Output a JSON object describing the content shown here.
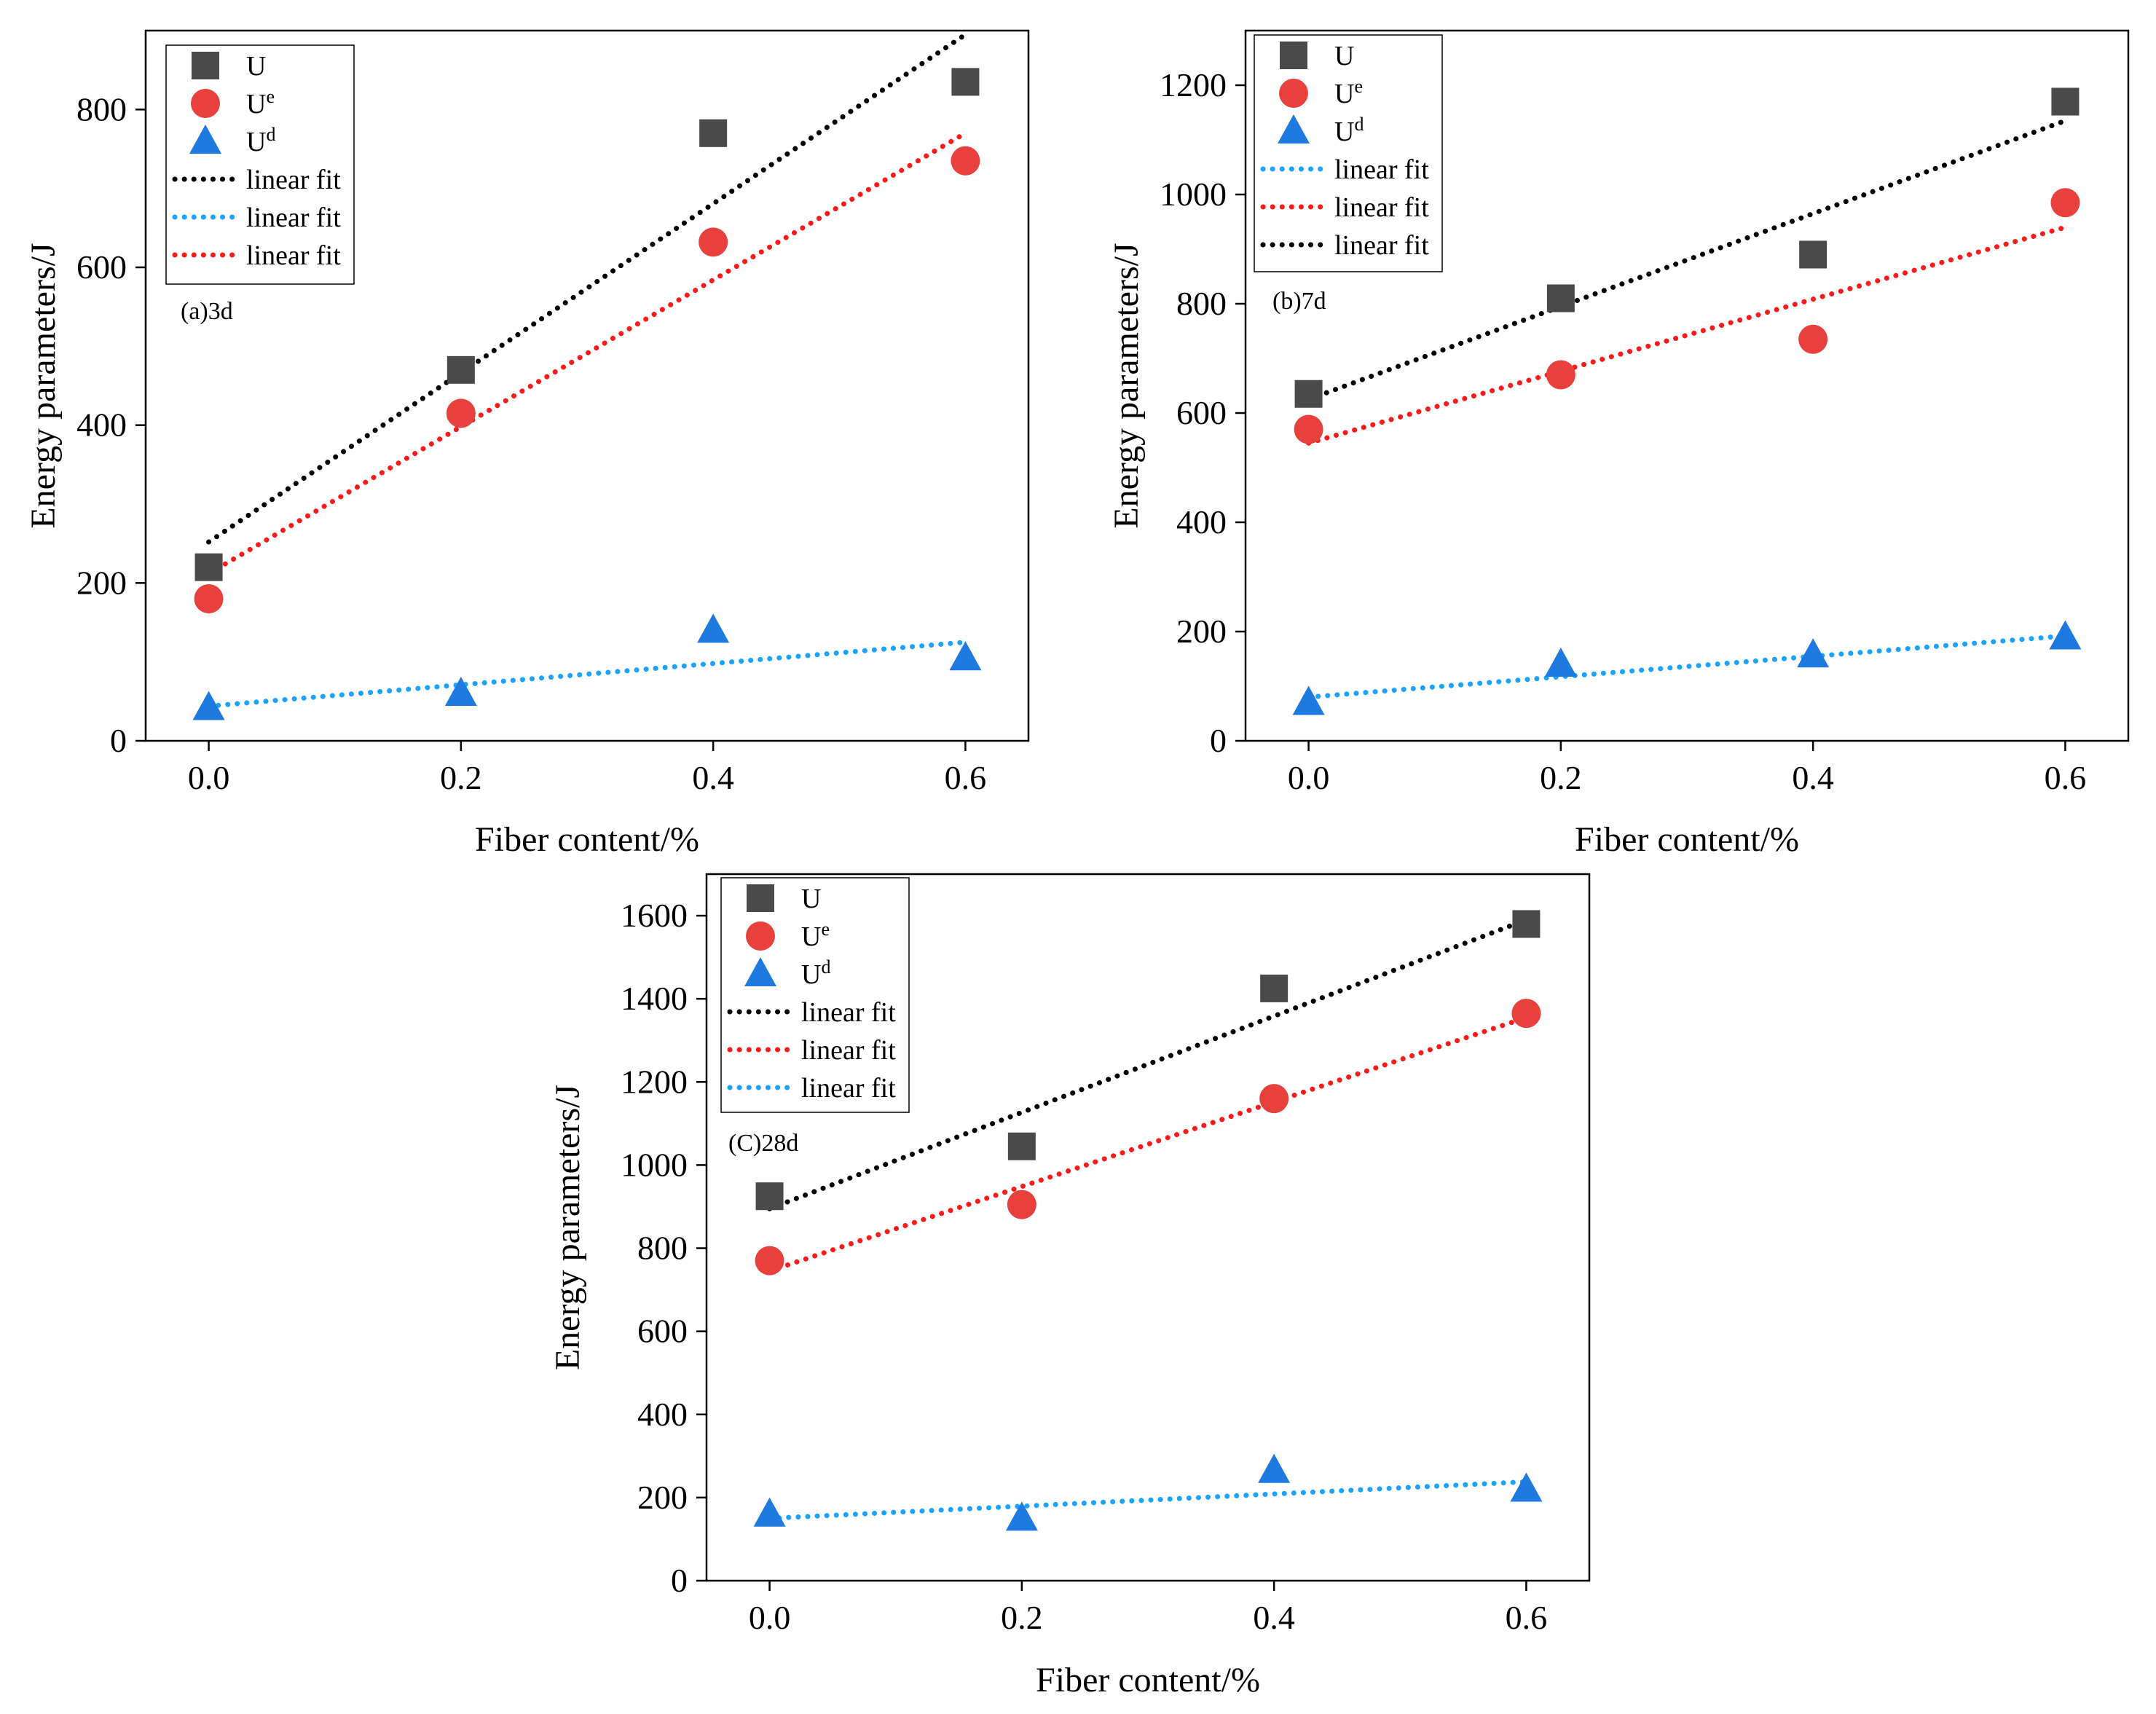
{
  "figure": {
    "colors": {
      "U": "#4a4a4a",
      "Ue": "#e8403c",
      "Ud": "#1f7ae0",
      "fit_black": "#000000",
      "fit_red": "#ff1a1a",
      "fit_blue": "#1aa3ff"
    }
  },
  "chart_data": [
    {
      "type": "scatter",
      "panel_label": "(a)3d",
      "xlabel": "Fiber content/%",
      "ylabel": "Energy parameters/J",
      "xlim": [
        -0.05,
        0.65
      ],
      "ylim": [
        0,
        900
      ],
      "xticks": [
        0.0,
        0.2,
        0.4,
        0.6
      ],
      "xtick_labels": [
        "0.0",
        "0.2",
        "0.4",
        "0.6"
      ],
      "yticks": [
        0,
        200,
        400,
        600,
        800
      ],
      "ytick_labels": [
        "0",
        "200",
        "400",
        "600",
        "800"
      ],
      "legend_position": "top-left",
      "series": [
        {
          "name": "U",
          "base": "U",
          "sup": "",
          "marker": "square",
          "color": "#4a4a4a",
          "x": [
            0.0,
            0.2,
            0.4,
            0.6
          ],
          "y": [
            220,
            470,
            770,
            835
          ]
        },
        {
          "name": "Uᵉ",
          "base": "U",
          "sup": "e",
          "marker": "circle",
          "color": "#e8403c",
          "x": [
            0.0,
            0.2,
            0.4,
            0.6
          ],
          "y": [
            180,
            415,
            632,
            735
          ]
        },
        {
          "name": "Uᵈ",
          "base": "U",
          "sup": "d",
          "marker": "triangle",
          "color": "#1f7ae0",
          "x": [
            0.0,
            0.2,
            0.4,
            0.6
          ],
          "y": [
            42,
            60,
            140,
            105
          ]
        }
      ],
      "fits": [
        {
          "name": "linear fit",
          "color": "#000000",
          "x": [
            0.0,
            0.6
          ],
          "y": [
            252,
            895
          ]
        },
        {
          "name": "linear fit",
          "color": "#1aa3ff",
          "x": [
            0.0,
            0.6
          ],
          "y": [
            44,
            125
          ]
        },
        {
          "name": "linear fit",
          "color": "#ff1a1a",
          "x": [
            0.0,
            0.6
          ],
          "y": [
            212,
            770
          ]
        }
      ]
    },
    {
      "type": "scatter",
      "panel_label": "(b)7d",
      "xlabel": "Fiber content/%",
      "ylabel": "Energy parameters/J",
      "xlim": [
        -0.05,
        0.65
      ],
      "ylim": [
        0,
        1300
      ],
      "xticks": [
        0.0,
        0.2,
        0.4,
        0.6
      ],
      "xtick_labels": [
        "0.0",
        "0.2",
        "0.4",
        "0.6"
      ],
      "yticks": [
        0,
        200,
        400,
        600,
        800,
        1000,
        1200
      ],
      "ytick_labels": [
        "0",
        "200",
        "400",
        "600",
        "800",
        "1000",
        "1200"
      ],
      "legend_position": "top-left",
      "series": [
        {
          "name": "U",
          "base": "U",
          "sup": "",
          "marker": "square",
          "color": "#4a4a4a",
          "x": [
            0.0,
            0.2,
            0.4,
            0.6
          ],
          "y": [
            635,
            810,
            890,
            1170
          ]
        },
        {
          "name": "Uᵉ",
          "base": "U",
          "sup": "e",
          "marker": "circle",
          "color": "#e8403c",
          "x": [
            0.0,
            0.2,
            0.4,
            0.6
          ],
          "y": [
            570,
            670,
            735,
            985
          ]
        },
        {
          "name": "Uᵈ",
          "base": "U",
          "sup": "d",
          "marker": "triangle",
          "color": "#1f7ae0",
          "x": [
            0.0,
            0.2,
            0.4,
            0.6
          ],
          "y": [
            70,
            140,
            157,
            190
          ]
        }
      ],
      "fits": [
        {
          "name": "linear fit",
          "color": "#1aa3ff",
          "x": [
            0.0,
            0.6
          ],
          "y": [
            80,
            192
          ]
        },
        {
          "name": "linear fit",
          "color": "#ff1a1a",
          "x": [
            0.0,
            0.6
          ],
          "y": [
            545,
            940
          ]
        },
        {
          "name": "linear fit",
          "color": "#000000",
          "x": [
            0.0,
            0.6
          ],
          "y": [
            625,
            1135
          ]
        }
      ]
    },
    {
      "type": "scatter",
      "panel_label": "(C)28d",
      "xlabel": "Fiber content/%",
      "ylabel": "Energy parameters/J",
      "xlim": [
        -0.05,
        0.65
      ],
      "ylim": [
        0,
        1700
      ],
      "xticks": [
        0.0,
        0.2,
        0.4,
        0.6
      ],
      "xtick_labels": [
        "0.0",
        "0.2",
        "0.4",
        "0.6"
      ],
      "yticks": [
        0,
        200,
        400,
        600,
        800,
        1000,
        1200,
        1400,
        1600
      ],
      "ytick_labels": [
        "0",
        "200",
        "400",
        "600",
        "800",
        "1000",
        "1200",
        "1400",
        "1600"
      ],
      "legend_position": "top-left",
      "series": [
        {
          "name": "U",
          "base": "U",
          "sup": "",
          "marker": "square",
          "color": "#4a4a4a",
          "x": [
            0.0,
            0.2,
            0.4,
            0.6
          ],
          "y": [
            925,
            1045,
            1425,
            1580
          ]
        },
        {
          "name": "Uᵉ",
          "base": "U",
          "sup": "e",
          "marker": "circle",
          "color": "#e8403c",
          "x": [
            0.0,
            0.2,
            0.4,
            0.6
          ],
          "y": [
            770,
            905,
            1160,
            1365
          ]
        },
        {
          "name": "Uᵈ",
          "base": "U",
          "sup": "d",
          "marker": "triangle",
          "color": "#1f7ae0",
          "x": [
            0.0,
            0.2,
            0.4,
            0.6
          ],
          "y": [
            160,
            150,
            265,
            220
          ]
        }
      ],
      "fits": [
        {
          "name": "linear fit",
          "color": "#000000",
          "x": [
            0.0,
            0.6
          ],
          "y": [
            895,
            1590
          ]
        },
        {
          "name": "linear fit",
          "color": "#ff1a1a",
          "x": [
            0.0,
            0.6
          ],
          "y": [
            745,
            1355
          ]
        },
        {
          "name": "linear fit",
          "color": "#1aa3ff",
          "x": [
            0.0,
            0.6
          ],
          "y": [
            150,
            238
          ]
        }
      ]
    }
  ]
}
